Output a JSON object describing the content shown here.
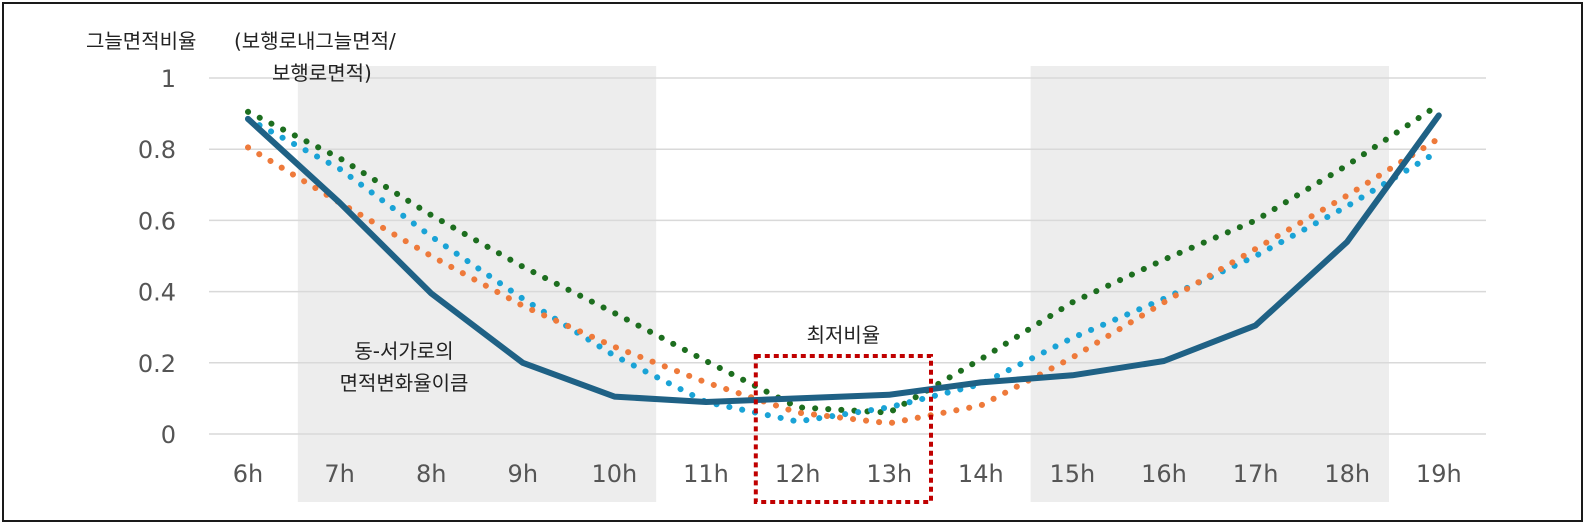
{
  "chart_data": {
    "type": "line",
    "ylabel": "그늘면적비율",
    "ylabel_note": [
      "(보행로내그늘면적/",
      "보행로면적)"
    ],
    "ylim": [
      0,
      1
    ],
    "yticks": [
      "0",
      "0.2",
      "0.4",
      "0.6",
      "0.8",
      "1"
    ],
    "categories": [
      "6h",
      "7h",
      "8h",
      "9h",
      "10h",
      "11h",
      "12h",
      "13h",
      "14h",
      "15h",
      "16h",
      "17h",
      "18h",
      "19h"
    ],
    "shaded_ranges": [
      [
        "7h",
        "10h"
      ],
      [
        "15h",
        "18h"
      ]
    ],
    "highlight_range": [
      "12h",
      "13h"
    ],
    "annotations": {
      "min_label": "최저비율",
      "shaded_label": [
        "동-서가로의",
        "면적변화율이큼"
      ]
    },
    "series": [
      {
        "style": "solid",
        "color": "#1f6185",
        "values": [
          0.885,
          0.65,
          0.395,
          0.2,
          0.105,
          0.09,
          0.1,
          0.11,
          0.145,
          0.165,
          0.205,
          0.305,
          0.54,
          0.895
        ]
      },
      {
        "style": "dotted",
        "color": "#1d6e1f",
        "values": [
          0.905,
          0.775,
          0.615,
          0.47,
          0.34,
          0.205,
          0.075,
          0.06,
          0.21,
          0.37,
          0.49,
          0.6,
          0.755,
          0.925
        ]
      },
      {
        "style": "dotted",
        "color": "#1aa3d6",
        "values": [
          0.885,
          0.745,
          0.555,
          0.38,
          0.22,
          0.09,
          0.035,
          0.075,
          0.14,
          0.27,
          0.38,
          0.5,
          0.64,
          0.795
        ]
      },
      {
        "style": "dotted",
        "color": "#ee7a3b",
        "values": [
          0.805,
          0.65,
          0.5,
          0.36,
          0.245,
          0.145,
          0.06,
          0.03,
          0.08,
          0.215,
          0.37,
          0.52,
          0.67,
          0.83
        ]
      }
    ],
    "grid": true,
    "colors": {
      "shade": "#ededed",
      "grid": "#d9d9d9",
      "highlight": "#c00000"
    }
  }
}
